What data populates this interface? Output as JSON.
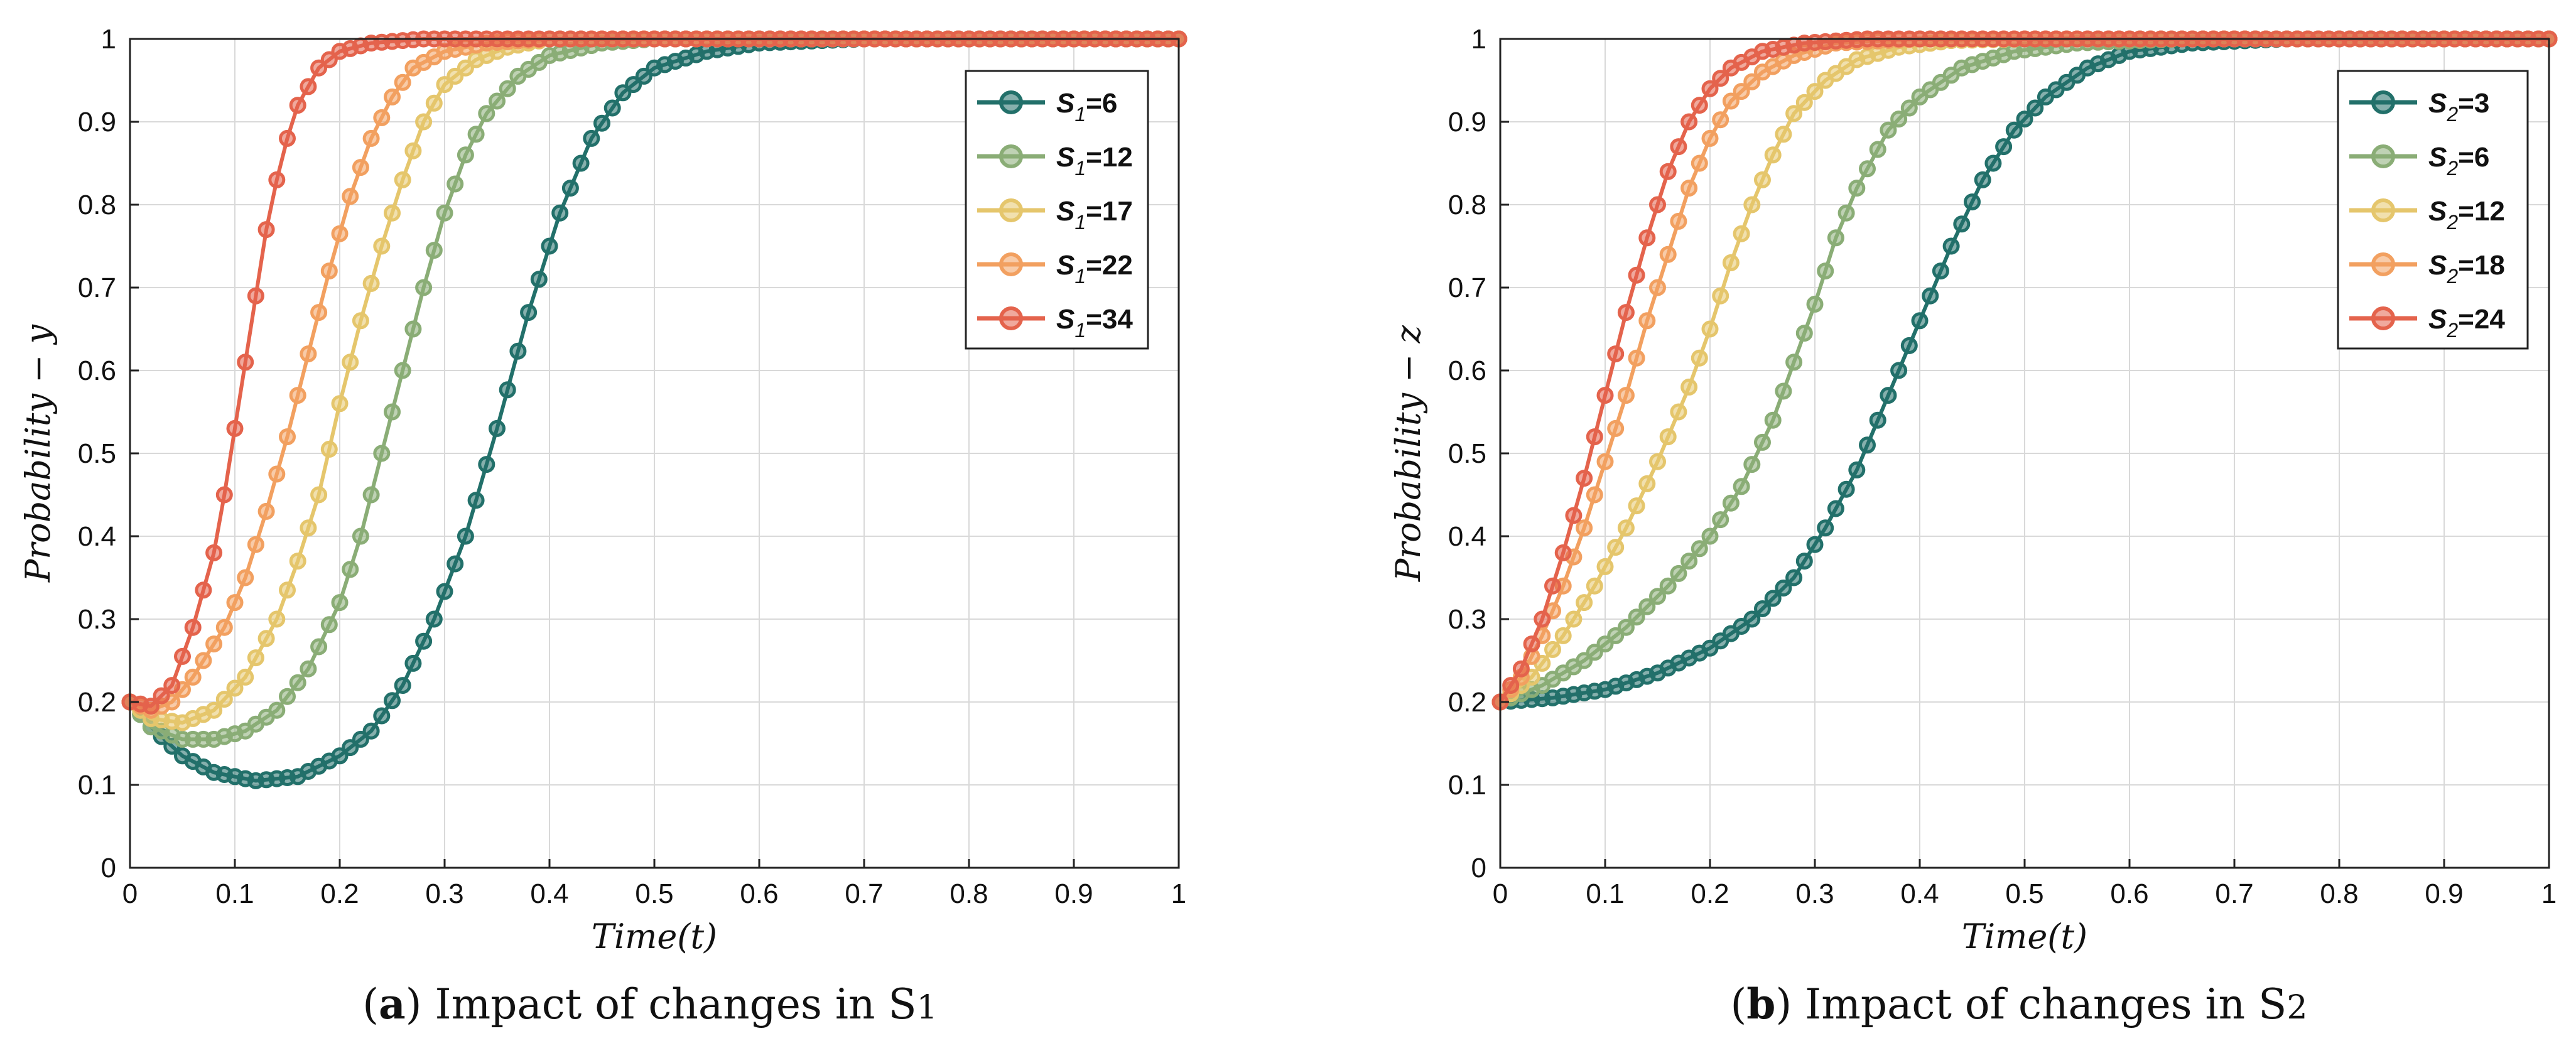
{
  "colors": {
    "teal": "#22706a",
    "green": "#8aad76",
    "yellow": "#e5c66c",
    "orange": "#f2a060",
    "red": "#e4634c",
    "grid": "#d9d9d9",
    "axis": "#222222"
  },
  "captions": [
    {
      "letter": "a",
      "text": " Impact of changes in S",
      "sub": "1"
    },
    {
      "letter": "b",
      "text": " Impact of changes in S",
      "sub": "2"
    }
  ],
  "chart_data": [
    {
      "type": "line",
      "title": "",
      "xlabel": "Time(t)",
      "ylabel": "Probability − y",
      "xlim": [
        0,
        1
      ],
      "ylim": [
        0,
        1
      ],
      "grid": true,
      "legend_position": "top-right",
      "xticks": [
        "0",
        "0.1",
        "0.2",
        "0.3",
        "0.4",
        "0.5",
        "0.6",
        "0.7",
        "0.8",
        "0.9",
        "1"
      ],
      "yticks": [
        "0",
        "0.1",
        "0.2",
        "0.3",
        "0.4",
        "0.5",
        "0.6",
        "0.7",
        "0.8",
        "0.9",
        "1"
      ],
      "series": [
        {
          "name": "S1=6",
          "legend_var": "S",
          "legend_sub": "1",
          "legend_val": "=6",
          "color_key": "teal",
          "points": [
            [
              0,
              0.2
            ],
            [
              0.02,
              0.17
            ],
            [
              0.05,
              0.135
            ],
            [
              0.08,
              0.115
            ],
            [
              0.12,
              0.105
            ],
            [
              0.16,
              0.11
            ],
            [
              0.2,
              0.135
            ],
            [
              0.23,
              0.165
            ],
            [
              0.26,
              0.22
            ],
            [
              0.29,
              0.3
            ],
            [
              0.32,
              0.4
            ],
            [
              0.35,
              0.53
            ],
            [
              0.38,
              0.67
            ],
            [
              0.41,
              0.79
            ],
            [
              0.44,
              0.88
            ],
            [
              0.47,
              0.935
            ],
            [
              0.5,
              0.965
            ],
            [
              0.55,
              0.985
            ],
            [
              0.6,
              0.995
            ],
            [
              0.7,
              1
            ],
            [
              1,
              1
            ]
          ]
        },
        {
          "name": "S1=12",
          "legend_var": "S",
          "legend_sub": "1",
          "legend_val": "=12",
          "color_key": "green",
          "points": [
            [
              0,
              0.2
            ],
            [
              0.02,
              0.17
            ],
            [
              0.05,
              0.155
            ],
            [
              0.08,
              0.155
            ],
            [
              0.11,
              0.165
            ],
            [
              0.14,
              0.19
            ],
            [
              0.17,
              0.24
            ],
            [
              0.2,
              0.32
            ],
            [
              0.22,
              0.4
            ],
            [
              0.24,
              0.5
            ],
            [
              0.26,
              0.6
            ],
            [
              0.28,
              0.7
            ],
            [
              0.3,
              0.79
            ],
            [
              0.32,
              0.86
            ],
            [
              0.34,
              0.91
            ],
            [
              0.37,
              0.955
            ],
            [
              0.4,
              0.98
            ],
            [
              0.45,
              0.995
            ],
            [
              0.5,
              1
            ],
            [
              1,
              1
            ]
          ]
        },
        {
          "name": "S1=17",
          "legend_var": "S",
          "legend_sub": "1",
          "legend_val": "=17",
          "color_key": "yellow",
          "points": [
            [
              0,
              0.2
            ],
            [
              0.02,
              0.18
            ],
            [
              0.05,
              0.175
            ],
            [
              0.08,
              0.19
            ],
            [
              0.11,
              0.23
            ],
            [
              0.14,
              0.3
            ],
            [
              0.16,
              0.37
            ],
            [
              0.18,
              0.45
            ],
            [
              0.2,
              0.56
            ],
            [
              0.22,
              0.66
            ],
            [
              0.24,
              0.75
            ],
            [
              0.26,
              0.83
            ],
            [
              0.28,
              0.9
            ],
            [
              0.3,
              0.945
            ],
            [
              0.33,
              0.975
            ],
            [
              0.36,
              0.99
            ],
            [
              0.4,
              1
            ],
            [
              1,
              1
            ]
          ]
        },
        {
          "name": "S1=22",
          "legend_var": "S",
          "legend_sub": "1",
          "legend_val": "=22",
          "color_key": "orange",
          "points": [
            [
              0,
              0.2
            ],
            [
              0.02,
              0.19
            ],
            [
              0.04,
              0.2
            ],
            [
              0.06,
              0.23
            ],
            [
              0.09,
              0.29
            ],
            [
              0.11,
              0.35
            ],
            [
              0.13,
              0.43
            ],
            [
              0.15,
              0.52
            ],
            [
              0.17,
              0.62
            ],
            [
              0.19,
              0.72
            ],
            [
              0.21,
              0.81
            ],
            [
              0.23,
              0.88
            ],
            [
              0.25,
              0.93
            ],
            [
              0.27,
              0.965
            ],
            [
              0.3,
              0.985
            ],
            [
              0.34,
              0.995
            ],
            [
              0.4,
              1
            ],
            [
              1,
              1
            ]
          ]
        },
        {
          "name": "S1=34",
          "legend_var": "S",
          "legend_sub": "1",
          "legend_val": "=34",
          "color_key": "red",
          "points": [
            [
              0,
              0.2
            ],
            [
              0.02,
              0.195
            ],
            [
              0.04,
              0.22
            ],
            [
              0.06,
              0.29
            ],
            [
              0.08,
              0.38
            ],
            [
              0.09,
              0.45
            ],
            [
              0.1,
              0.53
            ],
            [
              0.11,
              0.61
            ],
            [
              0.12,
              0.69
            ],
            [
              0.13,
              0.77
            ],
            [
              0.14,
              0.83
            ],
            [
              0.15,
              0.88
            ],
            [
              0.16,
              0.92
            ],
            [
              0.18,
              0.965
            ],
            [
              0.2,
              0.985
            ],
            [
              0.23,
              0.995
            ],
            [
              0.28,
              1
            ],
            [
              1,
              1
            ]
          ]
        }
      ]
    },
    {
      "type": "line",
      "title": "",
      "xlabel": "Time(t)",
      "ylabel": "Probability − z",
      "xlim": [
        0,
        1
      ],
      "ylim": [
        0,
        1
      ],
      "grid": true,
      "legend_position": "top-right",
      "xticks": [
        "0",
        "0.1",
        "0.2",
        "0.3",
        "0.4",
        "0.5",
        "0.6",
        "0.7",
        "0.8",
        "0.9",
        "1"
      ],
      "yticks": [
        "0",
        "0.1",
        "0.2",
        "0.3",
        "0.4",
        "0.5",
        "0.6",
        "0.7",
        "0.8",
        "0.9",
        "1"
      ],
      "series": [
        {
          "name": "S2=3",
          "legend_var": "S",
          "legend_sub": "2",
          "legend_val": "=3",
          "color_key": "teal",
          "points": [
            [
              0,
              0.2
            ],
            [
              0.05,
              0.205
            ],
            [
              0.1,
              0.215
            ],
            [
              0.15,
              0.235
            ],
            [
              0.2,
              0.265
            ],
            [
              0.24,
              0.3
            ],
            [
              0.28,
              0.35
            ],
            [
              0.31,
              0.41
            ],
            [
              0.34,
              0.48
            ],
            [
              0.37,
              0.57
            ],
            [
              0.4,
              0.66
            ],
            [
              0.43,
              0.75
            ],
            [
              0.46,
              0.83
            ],
            [
              0.49,
              0.89
            ],
            [
              0.52,
              0.93
            ],
            [
              0.56,
              0.965
            ],
            [
              0.6,
              0.985
            ],
            [
              0.66,
              0.995
            ],
            [
              0.75,
              1
            ],
            [
              1,
              1
            ]
          ]
        },
        {
          "name": "S2=6",
          "legend_var": "S",
          "legend_sub": "2",
          "legend_val": "=6",
          "color_key": "green",
          "points": [
            [
              0,
              0.2
            ],
            [
              0.04,
              0.22
            ],
            [
              0.08,
              0.25
            ],
            [
              0.12,
              0.29
            ],
            [
              0.16,
              0.34
            ],
            [
              0.2,
              0.4
            ],
            [
              0.23,
              0.46
            ],
            [
              0.26,
              0.54
            ],
            [
              0.28,
              0.61
            ],
            [
              0.3,
              0.68
            ],
            [
              0.32,
              0.76
            ],
            [
              0.34,
              0.82
            ],
            [
              0.37,
              0.89
            ],
            [
              0.4,
              0.93
            ],
            [
              0.44,
              0.965
            ],
            [
              0.49,
              0.985
            ],
            [
              0.55,
              0.995
            ],
            [
              0.65,
              1
            ],
            [
              1,
              1
            ]
          ]
        },
        {
          "name": "S2=12",
          "legend_var": "S",
          "legend_sub": "2",
          "legend_val": "=12",
          "color_key": "yellow",
          "points": [
            [
              0,
              0.2
            ],
            [
              0.03,
              0.23
            ],
            [
              0.06,
              0.28
            ],
            [
              0.09,
              0.34
            ],
            [
              0.12,
              0.41
            ],
            [
              0.15,
              0.49
            ],
            [
              0.18,
              0.58
            ],
            [
              0.2,
              0.65
            ],
            [
              0.22,
              0.73
            ],
            [
              0.24,
              0.8
            ],
            [
              0.26,
              0.86
            ],
            [
              0.28,
              0.91
            ],
            [
              0.31,
              0.95
            ],
            [
              0.34,
              0.975
            ],
            [
              0.38,
              0.99
            ],
            [
              0.43,
              0.998
            ],
            [
              0.5,
              1
            ],
            [
              1,
              1
            ]
          ]
        },
        {
          "name": "S2=18",
          "legend_var": "S",
          "legend_sub": "2",
          "legend_val": "=18",
          "color_key": "orange",
          "points": [
            [
              0,
              0.2
            ],
            [
              0.02,
              0.23
            ],
            [
              0.04,
              0.28
            ],
            [
              0.06,
              0.34
            ],
            [
              0.08,
              0.41
            ],
            [
              0.1,
              0.49
            ],
            [
              0.12,
              0.57
            ],
            [
              0.14,
              0.66
            ],
            [
              0.16,
              0.74
            ],
            [
              0.18,
              0.82
            ],
            [
              0.2,
              0.88
            ],
            [
              0.22,
              0.925
            ],
            [
              0.25,
              0.96
            ],
            [
              0.28,
              0.98
            ],
            [
              0.32,
              0.995
            ],
            [
              0.4,
              1
            ],
            [
              1,
              1
            ]
          ]
        },
        {
          "name": "S2=24",
          "legend_var": "S",
          "legend_sub": "2",
          "legend_val": "=24",
          "color_key": "red",
          "points": [
            [
              0,
              0.2
            ],
            [
              0.02,
              0.24
            ],
            [
              0.04,
              0.3
            ],
            [
              0.06,
              0.38
            ],
            [
              0.08,
              0.47
            ],
            [
              0.1,
              0.57
            ],
            [
              0.12,
              0.67
            ],
            [
              0.14,
              0.76
            ],
            [
              0.16,
              0.84
            ],
            [
              0.18,
              0.9
            ],
            [
              0.2,
              0.94
            ],
            [
              0.22,
              0.965
            ],
            [
              0.25,
              0.985
            ],
            [
              0.29,
              0.995
            ],
            [
              0.35,
              1
            ],
            [
              1,
              1
            ]
          ]
        }
      ]
    }
  ]
}
